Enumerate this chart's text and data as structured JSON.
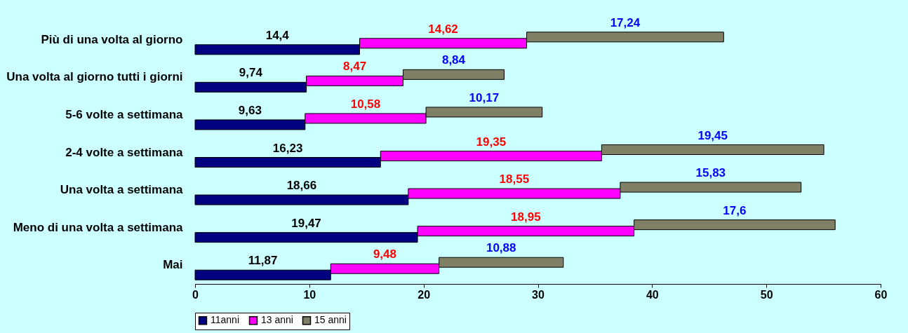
{
  "chart_data": {
    "type": "bar",
    "orientation": "horizontal",
    "stacked": true,
    "categories": [
      "Più di una volta al giorno",
      "Una volta al giorno tutti i giorni",
      "5-6 volte a settimana",
      "2-4 volte a settimana",
      "Una volta a settimana",
      "Meno di una volta a settimana",
      "Mai"
    ],
    "series": [
      {
        "name": "11anni",
        "color": "#000080",
        "values": [
          14.4,
          9.74,
          9.63,
          16.23,
          18.66,
          19.47,
          11.87
        ],
        "value_labels": [
          "14,4",
          "9,74",
          "9,63",
          "16,23",
          "18,66",
          "19,47",
          "11,87"
        ]
      },
      {
        "name": "13 anni",
        "color": "#ff00ff",
        "values": [
          14.62,
          8.47,
          10.58,
          19.35,
          18.55,
          18.95,
          9.48
        ],
        "value_labels": [
          "14,62",
          "8,47",
          "10,58",
          "19,35",
          "18,55",
          "18,95",
          "9,48"
        ]
      },
      {
        "name": "15 anni",
        "color": "#808066",
        "values": [
          17.24,
          8.84,
          10.17,
          19.45,
          15.83,
          17.6,
          10.88
        ],
        "value_labels": [
          "17,24",
          "8,84",
          "10,17",
          "19,45",
          "15,83",
          "17,6",
          "10,88"
        ]
      }
    ],
    "xlim": [
      0,
      60
    ],
    "xticks": [
      0,
      10,
      20,
      30,
      40,
      50,
      60
    ],
    "grid": false,
    "legend": "bottom"
  }
}
